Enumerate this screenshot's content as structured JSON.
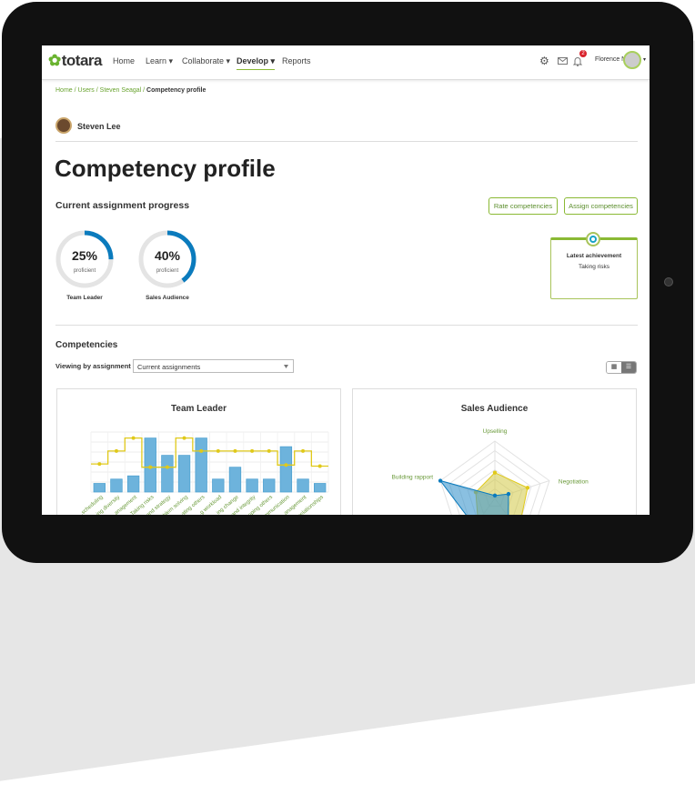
{
  "header": {
    "logo": "totara",
    "nav": [
      {
        "label": "Home"
      },
      {
        "label": "Learn ▾"
      },
      {
        "label": "Collaborate ▾"
      },
      {
        "label": "Develop ▾",
        "active": true
      },
      {
        "label": "Reports"
      }
    ],
    "notifications": "2",
    "user": "Florence N"
  },
  "breadcrumb": [
    "Home",
    "Users",
    "Steven Seagal",
    "Competency profile"
  ],
  "profile": {
    "name": "Steven Lee"
  },
  "page_title": "Competency profile",
  "progress": {
    "heading": "Current assignment progress",
    "rate_button": "Rate competencies",
    "assign_button": "Assign competencies",
    "items": [
      {
        "percent": 25,
        "percent_label": "25%",
        "sub": "proficient",
        "label": "Team Leader"
      },
      {
        "percent": 40,
        "percent_label": "40%",
        "sub": "proficient",
        "label": "Sales Audience"
      }
    ],
    "achievement": {
      "title": "Latest achievement",
      "value": "Taking risks"
    }
  },
  "competencies": {
    "heading": "Competencies",
    "viewing_label": "Viewing by assignment",
    "select_value": "Current assignments"
  },
  "colors": {
    "accent": "#8ab934",
    "blue": "#0b7bbd",
    "bar": "#6db3dc",
    "line": "#e0c91a"
  },
  "chart_data": [
    {
      "type": "bar",
      "title": "Team Leader",
      "ylim": [
        0,
        5
      ],
      "grid": true,
      "categories": [
        "...scheduling",
        "...ing diversity",
        "...anagement",
        "Taking risks",
        "...and strategy",
        "...blem solving",
        "...ating others",
        "...g workload",
        "...ing change",
        "...and integrity",
        "...oping others",
        "...communication",
        "...anagement",
        "...relationships"
      ],
      "series": [
        {
          "type": "bar",
          "values": [
            0.8,
            1.2,
            1.5,
            5,
            3.4,
            3.4,
            5,
            1.2,
            2.3,
            1.2,
            1.2,
            4.2,
            1.2,
            0.8
          ]
        },
        {
          "type": "step-line",
          "values": [
            2.6,
            3.8,
            5,
            2.3,
            2.3,
            5,
            3.8,
            3.8,
            3.8,
            3.8,
            3.8,
            2.5,
            3.8,
            2.4
          ]
        }
      ]
    },
    {
      "type": "radar",
      "title": "Sales Audience",
      "axes": [
        "Upselling",
        "Negotiation",
        "",
        "",
        "Building rapport"
      ],
      "series": [
        {
          "values": [
            0.45,
            0.6,
            0.7,
            0.5,
            0.35
          ]
        },
        {
          "values": [
            0.05,
            0.25,
            0.4,
            0.6,
            1.0
          ]
        }
      ]
    }
  ]
}
